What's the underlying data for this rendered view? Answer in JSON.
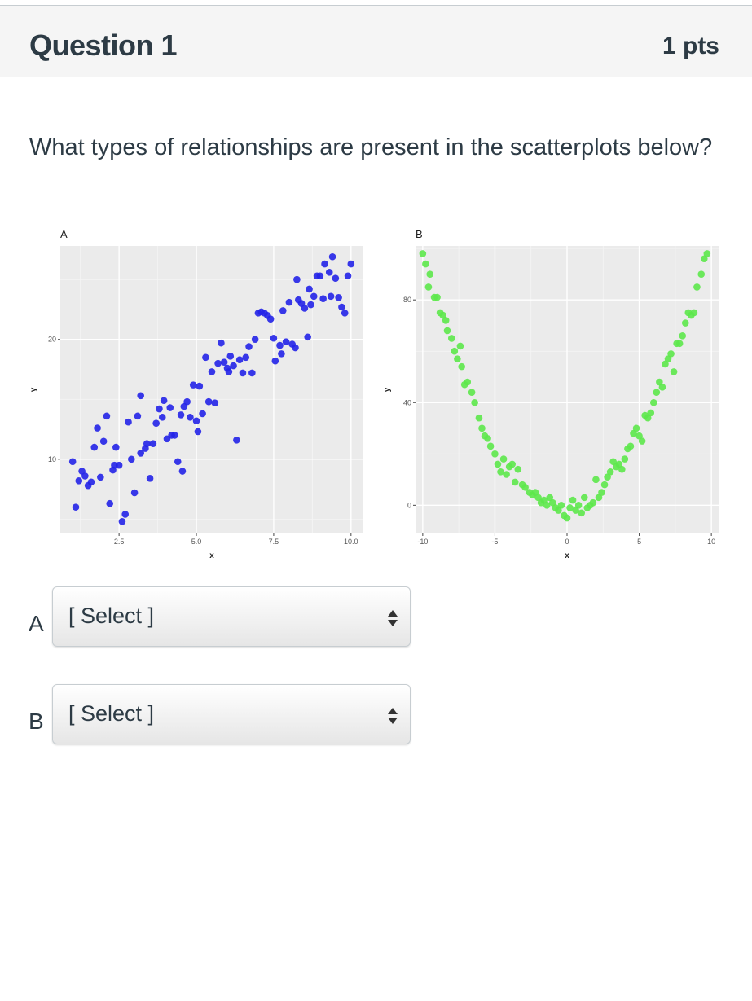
{
  "question": {
    "title": "Question 1",
    "points": "1 pts",
    "text": "What types of relationships are present in the scatterplots below?"
  },
  "answers": [
    {
      "letter": "A",
      "placeholder": "[ Select ]"
    },
    {
      "letter": "B",
      "placeholder": "[ Select ]"
    }
  ],
  "chart_data": [
    {
      "type": "scatter",
      "title": "A",
      "xlabel": "x",
      "ylabel": "y",
      "xlim": [
        0.6,
        10.4
      ],
      "ylim": [
        3.8,
        27.8
      ],
      "xticks": [
        "2.5",
        "5.0",
        "7.5",
        "10.0"
      ],
      "yticks": [
        "10",
        "20"
      ],
      "color": "#2323e8",
      "points": [
        [
          1.0,
          9.8
        ],
        [
          1.1,
          6.0
        ],
        [
          1.2,
          8.2
        ],
        [
          1.3,
          9.0
        ],
        [
          1.4,
          8.6
        ],
        [
          1.5,
          7.8
        ],
        [
          1.6,
          8.1
        ],
        [
          1.7,
          11.0
        ],
        [
          1.8,
          12.6
        ],
        [
          1.9,
          8.5
        ],
        [
          2.0,
          11.5
        ],
        [
          2.1,
          13.6
        ],
        [
          2.2,
          6.3
        ],
        [
          2.3,
          9.1
        ],
        [
          2.35,
          9.5
        ],
        [
          2.4,
          11.0
        ],
        [
          2.5,
          9.5
        ],
        [
          2.6,
          4.8
        ],
        [
          2.7,
          5.4
        ],
        [
          2.8,
          13.1
        ],
        [
          2.9,
          10.0
        ],
        [
          3.0,
          7.2
        ],
        [
          3.1,
          13.6
        ],
        [
          3.2,
          10.5
        ],
        [
          3.2,
          15.3
        ],
        [
          3.35,
          10.9
        ],
        [
          3.4,
          11.3
        ],
        [
          3.5,
          8.4
        ],
        [
          3.6,
          11.3
        ],
        [
          3.7,
          13.0
        ],
        [
          3.8,
          14.2
        ],
        [
          3.9,
          13.5
        ],
        [
          3.95,
          14.9
        ],
        [
          4.05,
          11.7
        ],
        [
          4.15,
          14.3
        ],
        [
          4.2,
          12.0
        ],
        [
          4.3,
          12.0
        ],
        [
          4.4,
          9.8
        ],
        [
          4.5,
          13.7
        ],
        [
          4.55,
          9.0
        ],
        [
          4.6,
          14.4
        ],
        [
          4.7,
          14.8
        ],
        [
          4.8,
          13.5
        ],
        [
          4.9,
          16.2
        ],
        [
          5.0,
          13.2
        ],
        [
          5.05,
          12.3
        ],
        [
          5.1,
          16.1
        ],
        [
          5.2,
          13.8
        ],
        [
          5.3,
          18.5
        ],
        [
          5.4,
          14.8
        ],
        [
          5.5,
          17.3
        ],
        [
          5.6,
          14.7
        ],
        [
          5.7,
          18.0
        ],
        [
          5.8,
          19.7
        ],
        [
          5.9,
          18.1
        ],
        [
          6.0,
          17.6
        ],
        [
          6.05,
          17.3
        ],
        [
          6.1,
          18.6
        ],
        [
          6.2,
          17.8
        ],
        [
          6.3,
          11.6
        ],
        [
          6.4,
          18.3
        ],
        [
          6.5,
          17.2
        ],
        [
          6.6,
          18.5
        ],
        [
          6.7,
          19.4
        ],
        [
          6.8,
          17.2
        ],
        [
          6.9,
          20.0
        ],
        [
          7.0,
          22.2
        ],
        [
          7.1,
          22.3
        ],
        [
          7.2,
          22.2
        ],
        [
          7.3,
          22.0
        ],
        [
          7.4,
          21.7
        ],
        [
          7.5,
          20.1
        ],
        [
          7.55,
          18.2
        ],
        [
          7.7,
          19.5
        ],
        [
          7.75,
          18.8
        ],
        [
          7.8,
          22.4
        ],
        [
          7.9,
          19.8
        ],
        [
          8.0,
          23.1
        ],
        [
          8.1,
          19.6
        ],
        [
          8.2,
          19.3
        ],
        [
          8.25,
          25.0
        ],
        [
          8.3,
          23.3
        ],
        [
          8.4,
          23.0
        ],
        [
          8.5,
          22.6
        ],
        [
          8.6,
          20.2
        ],
        [
          8.65,
          24.2
        ],
        [
          8.7,
          22.9
        ],
        [
          8.8,
          23.6
        ],
        [
          8.9,
          25.3
        ],
        [
          9.0,
          25.3
        ],
        [
          9.1,
          23.4
        ],
        [
          9.15,
          26.3
        ],
        [
          9.3,
          25.6
        ],
        [
          9.35,
          23.6
        ],
        [
          9.4,
          26.9
        ],
        [
          9.5,
          25.1
        ],
        [
          9.6,
          23.5
        ],
        [
          9.7,
          22.7
        ],
        [
          9.8,
          22.2
        ],
        [
          9.9,
          25.3
        ],
        [
          10.0,
          26.3
        ]
      ]
    },
    {
      "type": "scatter",
      "title": "B",
      "xlabel": "x",
      "ylabel": "y",
      "xlim": [
        -10.5,
        10.5
      ],
      "ylim": [
        -11,
        101
      ],
      "xticks": [
        "-10",
        "-5",
        "0",
        "5",
        "10"
      ],
      "yticks": [
        "0",
        "40",
        "80"
      ],
      "color": "#5de84b",
      "points": [
        [
          -10.0,
          98
        ],
        [
          -9.8,
          94
        ],
        [
          -9.5,
          90
        ],
        [
          -9.6,
          85
        ],
        [
          -9.2,
          81
        ],
        [
          -9.0,
          81
        ],
        [
          -8.8,
          75
        ],
        [
          -8.6,
          74
        ],
        [
          -8.4,
          72
        ],
        [
          -8.3,
          68
        ],
        [
          -8.0,
          65
        ],
        [
          -7.8,
          60
        ],
        [
          -7.6,
          57
        ],
        [
          -7.4,
          62
        ],
        [
          -7.3,
          54
        ],
        [
          -7.1,
          47
        ],
        [
          -6.9,
          48
        ],
        [
          -6.6,
          44
        ],
        [
          -6.4,
          40
        ],
        [
          -6.1,
          34
        ],
        [
          -5.9,
          30
        ],
        [
          -5.7,
          27
        ],
        [
          -5.5,
          26
        ],
        [
          -5.3,
          23
        ],
        [
          -5.0,
          20
        ],
        [
          -4.8,
          16
        ],
        [
          -4.6,
          13
        ],
        [
          -4.4,
          18
        ],
        [
          -4.2,
          12
        ],
        [
          -4.0,
          15
        ],
        [
          -3.8,
          16
        ],
        [
          -3.6,
          9
        ],
        [
          -3.4,
          14
        ],
        [
          -3.1,
          8
        ],
        [
          -2.9,
          7
        ],
        [
          -2.6,
          5
        ],
        [
          -2.4,
          4
        ],
        [
          -2.2,
          5
        ],
        [
          -2.0,
          3
        ],
        [
          -1.8,
          1
        ],
        [
          -1.6,
          2
        ],
        [
          -1.4,
          0
        ],
        [
          -1.2,
          3
        ],
        [
          -1.0,
          1
        ],
        [
          -0.8,
          -1
        ],
        [
          -0.6,
          -2
        ],
        [
          -0.4,
          0
        ],
        [
          -0.2,
          -4
        ],
        [
          0.0,
          -5
        ],
        [
          0.2,
          -1
        ],
        [
          0.4,
          2
        ],
        [
          0.6,
          -2
        ],
        [
          0.8,
          0
        ],
        [
          1.0,
          -3
        ],
        [
          1.2,
          3
        ],
        [
          1.4,
          -1
        ],
        [
          1.6,
          0
        ],
        [
          1.8,
          1
        ],
        [
          2.0,
          10
        ],
        [
          2.2,
          3
        ],
        [
          2.4,
          5
        ],
        [
          2.6,
          8
        ],
        [
          2.8,
          11
        ],
        [
          3.0,
          13
        ],
        [
          3.2,
          17
        ],
        [
          3.4,
          15
        ],
        [
          3.6,
          16
        ],
        [
          3.8,
          14
        ],
        [
          4.0,
          18
        ],
        [
          4.2,
          22
        ],
        [
          4.4,
          23
        ],
        [
          4.6,
          28
        ],
        [
          4.8,
          30
        ],
        [
          5.0,
          27
        ],
        [
          5.2,
          25
        ],
        [
          5.4,
          35
        ],
        [
          5.6,
          34
        ],
        [
          5.8,
          36
        ],
        [
          6.0,
          40
        ],
        [
          6.2,
          44
        ],
        [
          6.4,
          48
        ],
        [
          6.6,
          46
        ],
        [
          6.8,
          55
        ],
        [
          7.0,
          57
        ],
        [
          7.2,
          59
        ],
        [
          7.4,
          52
        ],
        [
          7.6,
          63
        ],
        [
          7.8,
          63
        ],
        [
          8.0,
          66
        ],
        [
          8.2,
          71
        ],
        [
          8.4,
          75
        ],
        [
          8.6,
          74
        ],
        [
          8.8,
          75
        ],
        [
          9.0,
          85
        ],
        [
          9.3,
          90
        ],
        [
          9.5,
          96
        ],
        [
          9.7,
          98
        ]
      ]
    }
  ]
}
